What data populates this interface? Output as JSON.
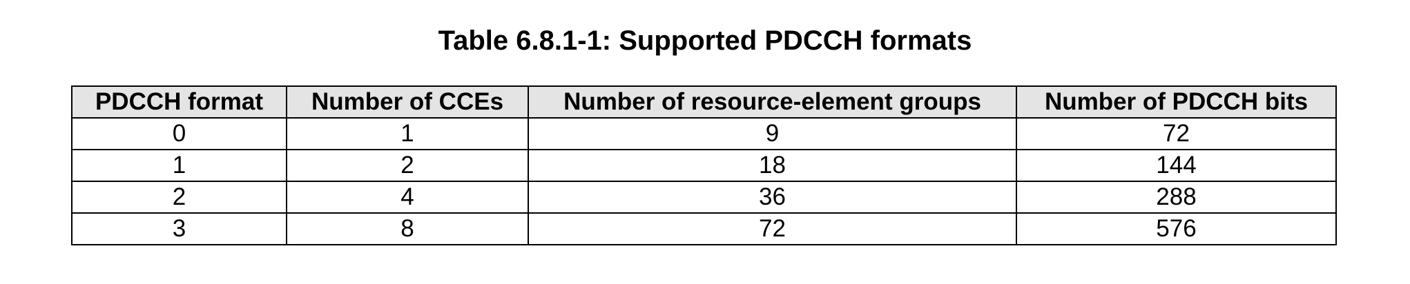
{
  "caption": "Table 6.8.1-1: Supported PDCCH formats",
  "table": {
    "headers": [
      "PDCCH format",
      "Number of CCEs",
      "Number of resource-element groups",
      "Number of PDCCH bits"
    ],
    "rows": [
      [
        "0",
        "1",
        "9",
        "72"
      ],
      [
        "1",
        "2",
        "18",
        "144"
      ],
      [
        "2",
        "4",
        "36",
        "288"
      ],
      [
        "3",
        "8",
        "72",
        "576"
      ]
    ]
  }
}
